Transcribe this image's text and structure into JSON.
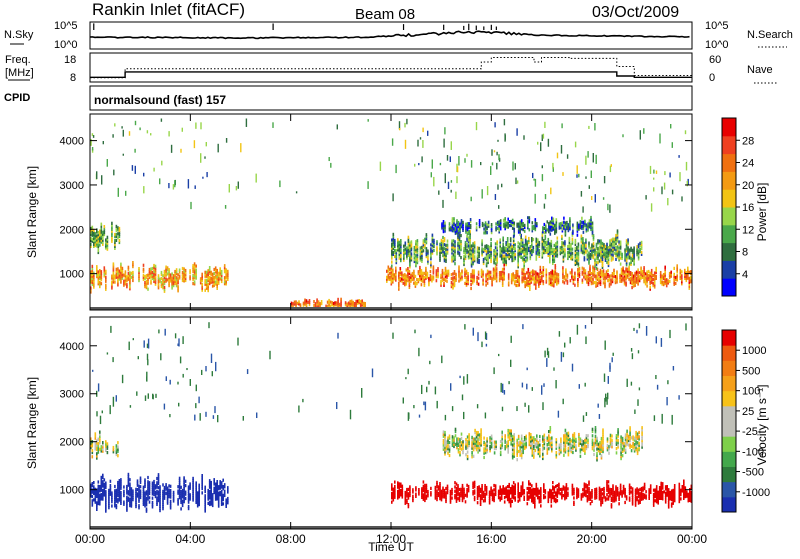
{
  "header": {
    "station": "Rankin Inlet (fitACF)",
    "beam": "Beam 08",
    "date": "03/Oct/2009"
  },
  "panels": {
    "nsky": {
      "left_label": "N.Sky",
      "right_label": "N.Search",
      "ticks_left": [
        "10^5",
        "10^0"
      ],
      "ticks_right": [
        "10^5",
        "10^0"
      ]
    },
    "freq": {
      "left_label_1": "Freq.",
      "left_label_2": "[MHz]",
      "right_label": "Nave",
      "ticks_left": [
        "18",
        "8"
      ],
      "ticks_right": [
        "60",
        "0"
      ]
    },
    "cpid": {
      "label": "CPID",
      "program": "normalsound (fast) 157"
    }
  },
  "axes": {
    "x_label": "Time UT",
    "x_ticks": [
      "00:00",
      "04:00",
      "08:00",
      "12:00",
      "16:00",
      "20:00",
      "00:00"
    ],
    "y_label": "Slant Range [km]",
    "y_ticks": [
      "4000",
      "3000",
      "2000",
      "1000"
    ]
  },
  "colorbars": {
    "power": {
      "label": "Power [dB]",
      "ticks": [
        "28",
        "24",
        "20",
        "16",
        "12",
        "8",
        "4"
      ],
      "colors": [
        "#0000ff",
        "#1a3fa6",
        "#2f6e3f",
        "#4aa84a",
        "#98d64a",
        "#f2c414",
        "#f39a12",
        "#f07010",
        "#ef4020",
        "#e80000"
      ]
    },
    "velocity": {
      "label": "Velocity [m s⁻¹]",
      "ticks": [
        "1000",
        "500",
        "100",
        "25",
        "-25",
        "-100",
        "-500",
        "-1000"
      ],
      "colors": [
        "#1a2fb0",
        "#2a56a8",
        "#2e7b3c",
        "#43a84c",
        "#7ed04a",
        "#c0c0b8",
        "#c0c0b8",
        "#f7c21a",
        "#f5a01a",
        "#f27d14",
        "#ee5a10",
        "#e60000"
      ]
    }
  },
  "chart_data": [
    {
      "type": "line",
      "title": "N.Sky / N.Search",
      "x": [
        0,
        1,
        2,
        3,
        4,
        5,
        6,
        7,
        8,
        9,
        10,
        11,
        12,
        13,
        14,
        15,
        16,
        17,
        18,
        19,
        20,
        21,
        22,
        23,
        24
      ],
      "series": [
        {
          "name": "N.Sky",
          "values": [
            200,
            150,
            160,
            140,
            130,
            120,
            110,
            120,
            130,
            140,
            150,
            160,
            300,
            600,
            1200,
            2500,
            1800,
            900,
            500,
            400,
            350,
            300,
            250,
            220,
            200
          ]
        }
      ],
      "y_scale": "log",
      "ylim": [
        1,
        100000
      ]
    },
    {
      "type": "line",
      "title": "Freq. [MHz] / Nave",
      "x": [
        0,
        1.1,
        1.4,
        14.8,
        15.6,
        16.0,
        17.7,
        18.0,
        19.1,
        21.0,
        21.7,
        24
      ],
      "series": [
        {
          "name": "Freq. [MHz]",
          "values": [
            9,
            9,
            11,
            11,
            11,
            11,
            11,
            11,
            11,
            9.5,
            9,
            9
          ]
        },
        {
          "name": "Nave",
          "values": [
            5,
            5,
            25,
            25,
            40,
            50,
            40,
            50,
            48,
            30,
            10,
            10
          ]
        }
      ],
      "xlim": [
        0,
        24
      ]
    },
    {
      "type": "heatmap",
      "title": "Power [dB]",
      "xlabel": "Time UT",
      "ylabel": "Slant Range [km]",
      "xlim": [
        0,
        24
      ],
      "ylim": [
        180,
        4600
      ],
      "colorbar_ticks": [
        4,
        8,
        12,
        16,
        20,
        24,
        28
      ],
      "features": [
        {
          "t_start": 0,
          "t_end": 5.5,
          "range_center": 900,
          "range_width": 500,
          "value": 22
        },
        {
          "t_start": 0,
          "t_end": 1.2,
          "range_center": 1800,
          "range_width": 500,
          "value": 14
        },
        {
          "t_start": 8,
          "t_end": 11,
          "range_center": 300,
          "range_width": 150,
          "value": 24
        },
        {
          "t_start": 11.8,
          "t_end": 24,
          "range_center": 900,
          "range_width": 400,
          "value": 24
        },
        {
          "t_start": 12,
          "t_end": 22,
          "range_center": 1500,
          "range_width": 600,
          "value": 12
        },
        {
          "t_start": 14,
          "t_end": 20,
          "range_center": 2050,
          "range_width": 300,
          "value": 8
        }
      ]
    },
    {
      "type": "heatmap",
      "title": "Velocity [m s⁻¹]",
      "xlabel": "Time UT",
      "ylabel": "Slant Range [km]",
      "xlim": [
        0,
        24
      ],
      "ylim": [
        180,
        4600
      ],
      "colorbar_ticks": [
        -1000,
        -500,
        -100,
        -25,
        25,
        100,
        500,
        1000
      ],
      "features": [
        {
          "t_start": 0,
          "t_end": 5.5,
          "range_center": 900,
          "range_width": 600,
          "value": 100
        },
        {
          "t_start": 0,
          "t_end": 1.2,
          "range_center": 1900,
          "range_width": 400,
          "value": 0
        },
        {
          "t_start": 12,
          "t_end": 24,
          "range_center": 900,
          "range_width": 400,
          "value": -300
        },
        {
          "t_start": 14,
          "t_end": 22,
          "range_center": 1950,
          "range_width": 500,
          "value": 0
        }
      ]
    }
  ]
}
